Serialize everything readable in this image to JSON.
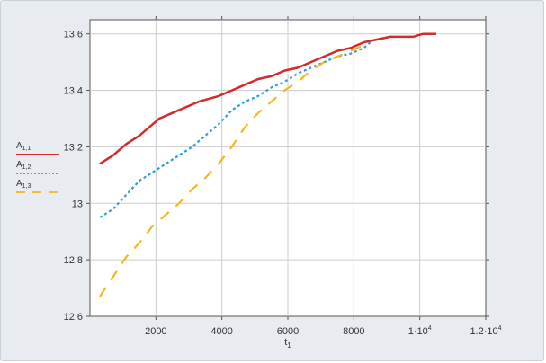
{
  "chart_data": {
    "type": "line",
    "title": "",
    "xlabel": "t",
    "xlabel_sub": "1",
    "ylabel": "",
    "xlim": [
      0,
      12000
    ],
    "ylim": [
      12.6,
      13.65
    ],
    "grid": true,
    "legend_placement": "left",
    "x_ticks": [
      {
        "value": 2000,
        "label": "2000",
        "sup": ""
      },
      {
        "value": 4000,
        "label": "4000",
        "sup": ""
      },
      {
        "value": 6000,
        "label": "6000",
        "sup": ""
      },
      {
        "value": 8000,
        "label": "8000",
        "sup": ""
      },
      {
        "value": 10000,
        "label": "1·10",
        "sup": "4"
      },
      {
        "value": 12000,
        "label": "1.2·10",
        "sup": "4"
      }
    ],
    "y_ticks": [
      {
        "value": 12.6,
        "label": "12.6"
      },
      {
        "value": 12.8,
        "label": "12.8"
      },
      {
        "value": 13.0,
        "label": "13"
      },
      {
        "value": 13.2,
        "label": "13.2"
      },
      {
        "value": 13.4,
        "label": "13.4"
      },
      {
        "value": 13.6,
        "label": "13.6"
      }
    ],
    "series": [
      {
        "name": "A",
        "name_sub": "1,1",
        "color": "#d42a2a",
        "dash": "solid",
        "x": [
          300,
          700,
          1100,
          1500,
          1900,
          2100,
          2500,
          2900,
          3300,
          3900,
          4300,
          4700,
          5100,
          5500,
          5900,
          6300,
          6700,
          7100,
          7500,
          7900,
          8300,
          8700,
          9100,
          9500,
          9800,
          10100,
          10500
        ],
        "y": [
          13.14,
          13.17,
          13.21,
          13.24,
          13.28,
          13.3,
          13.32,
          13.34,
          13.36,
          13.38,
          13.4,
          13.42,
          13.44,
          13.45,
          13.47,
          13.48,
          13.5,
          13.52,
          13.54,
          13.55,
          13.57,
          13.58,
          13.59,
          13.59,
          13.59,
          13.6,
          13.6
        ]
      },
      {
        "name": "A",
        "name_sub": "1,2",
        "color": "#2a9fd6",
        "dash": "dot",
        "x": [
          300,
          700,
          1100,
          1500,
          1900,
          2300,
          2700,
          3100,
          3500,
          3900,
          4300,
          4700,
          5100,
          5500,
          5900,
          6300,
          6700,
          7100,
          7500,
          7900,
          8300,
          8500
        ],
        "y": [
          12.95,
          12.98,
          13.03,
          13.08,
          13.11,
          13.14,
          13.17,
          13.2,
          13.24,
          13.28,
          13.33,
          13.36,
          13.38,
          13.41,
          13.43,
          13.46,
          13.48,
          13.5,
          13.52,
          13.53,
          13.55,
          13.57
        ]
      },
      {
        "name": "A",
        "name_sub": "1,3",
        "color": "#f2b81e",
        "dash": "dash",
        "x": [
          300,
          700,
          1100,
          1500,
          1900,
          2300,
          2700,
          3100,
          3500,
          3900,
          4300,
          4700,
          5100,
          5500,
          5900,
          6300,
          6700,
          7100,
          7500,
          7900,
          8300
        ],
        "y": [
          12.67,
          12.74,
          12.81,
          12.86,
          12.92,
          12.96,
          13.0,
          13.05,
          13.09,
          13.14,
          13.2,
          13.27,
          13.32,
          13.36,
          13.4,
          13.43,
          13.47,
          13.5,
          13.52,
          13.54,
          13.56
        ]
      }
    ]
  }
}
